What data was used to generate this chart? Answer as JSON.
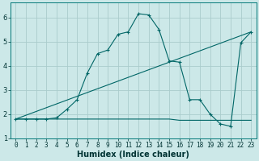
{
  "xlabel": "Humidex (Indice chaleur)",
  "ylabel": "",
  "xlim": [
    -0.5,
    23.5
  ],
  "ylim": [
    1,
    6.6
  ],
  "yticks": [
    1,
    2,
    3,
    4,
    5,
    6
  ],
  "xticks": [
    0,
    1,
    2,
    3,
    4,
    5,
    6,
    7,
    8,
    9,
    10,
    11,
    12,
    13,
    14,
    15,
    16,
    17,
    18,
    19,
    20,
    21,
    22,
    23
  ],
  "bg_color": "#cce8e8",
  "grid_color": "#aacccc",
  "line_color": "#006666",
  "line1_x": [
    0,
    1,
    2,
    3,
    4,
    5,
    6,
    7,
    8,
    9,
    10,
    11,
    12,
    13,
    14,
    15,
    16,
    17,
    18,
    19,
    20,
    21,
    22,
    23
  ],
  "line1_y": [
    1.8,
    1.8,
    1.8,
    1.8,
    1.85,
    2.2,
    2.6,
    3.7,
    4.5,
    4.65,
    5.3,
    5.4,
    6.15,
    6.1,
    5.5,
    4.2,
    4.15,
    2.6,
    2.6,
    2.0,
    1.6,
    1.5,
    4.95,
    5.4
  ],
  "line2_x": [
    0,
    1,
    2,
    3,
    4,
    5,
    6,
    7,
    8,
    9,
    10,
    11,
    12,
    13,
    14,
    15,
    16,
    17,
    18,
    19,
    20,
    21,
    22,
    23
  ],
  "line2_y": [
    1.8,
    1.8,
    1.8,
    1.8,
    1.8,
    1.8,
    1.8,
    1.8,
    1.8,
    1.8,
    1.8,
    1.8,
    1.8,
    1.8,
    1.8,
    1.8,
    1.75,
    1.75,
    1.75,
    1.75,
    1.75,
    1.75,
    1.75,
    1.75
  ],
  "line3_x": [
    0,
    23
  ],
  "line3_y": [
    1.8,
    5.4
  ],
  "tick_fontsize": 5.5,
  "xlabel_fontsize": 7,
  "ylabel_fontsize": 7
}
